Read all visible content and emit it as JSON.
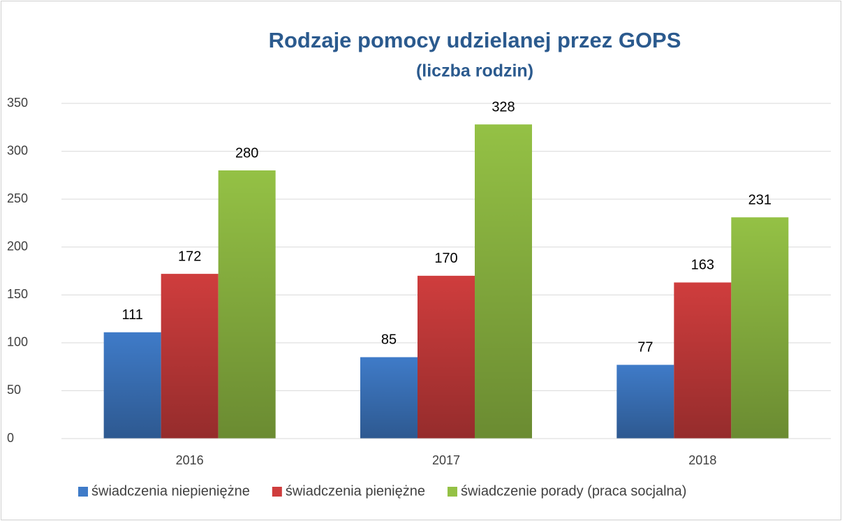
{
  "chart_data": {
    "type": "bar",
    "title": "Rodzaje pomocy udzielanej przez GOPS",
    "subtitle": "(liczba rodzin)",
    "categories": [
      "2016",
      "2017",
      "2018"
    ],
    "series": [
      {
        "name": "świadczenia niepieniężne",
        "color": "#3f7bc8",
        "values": [
          111,
          85,
          77
        ]
      },
      {
        "name": "świadczenia pieniężne",
        "color": "#cf3d3d",
        "values": [
          172,
          170,
          163
        ]
      },
      {
        "name": "świadczenie porady (praca socjalna)",
        "color": "#94c145",
        "values": [
          280,
          328,
          231
        ]
      }
    ],
    "ylim": [
      0,
      350
    ],
    "yticks": [
      0,
      50,
      100,
      150,
      200,
      250,
      300,
      350
    ],
    "grid": true,
    "legend": "bottom",
    "data_labels": true
  }
}
